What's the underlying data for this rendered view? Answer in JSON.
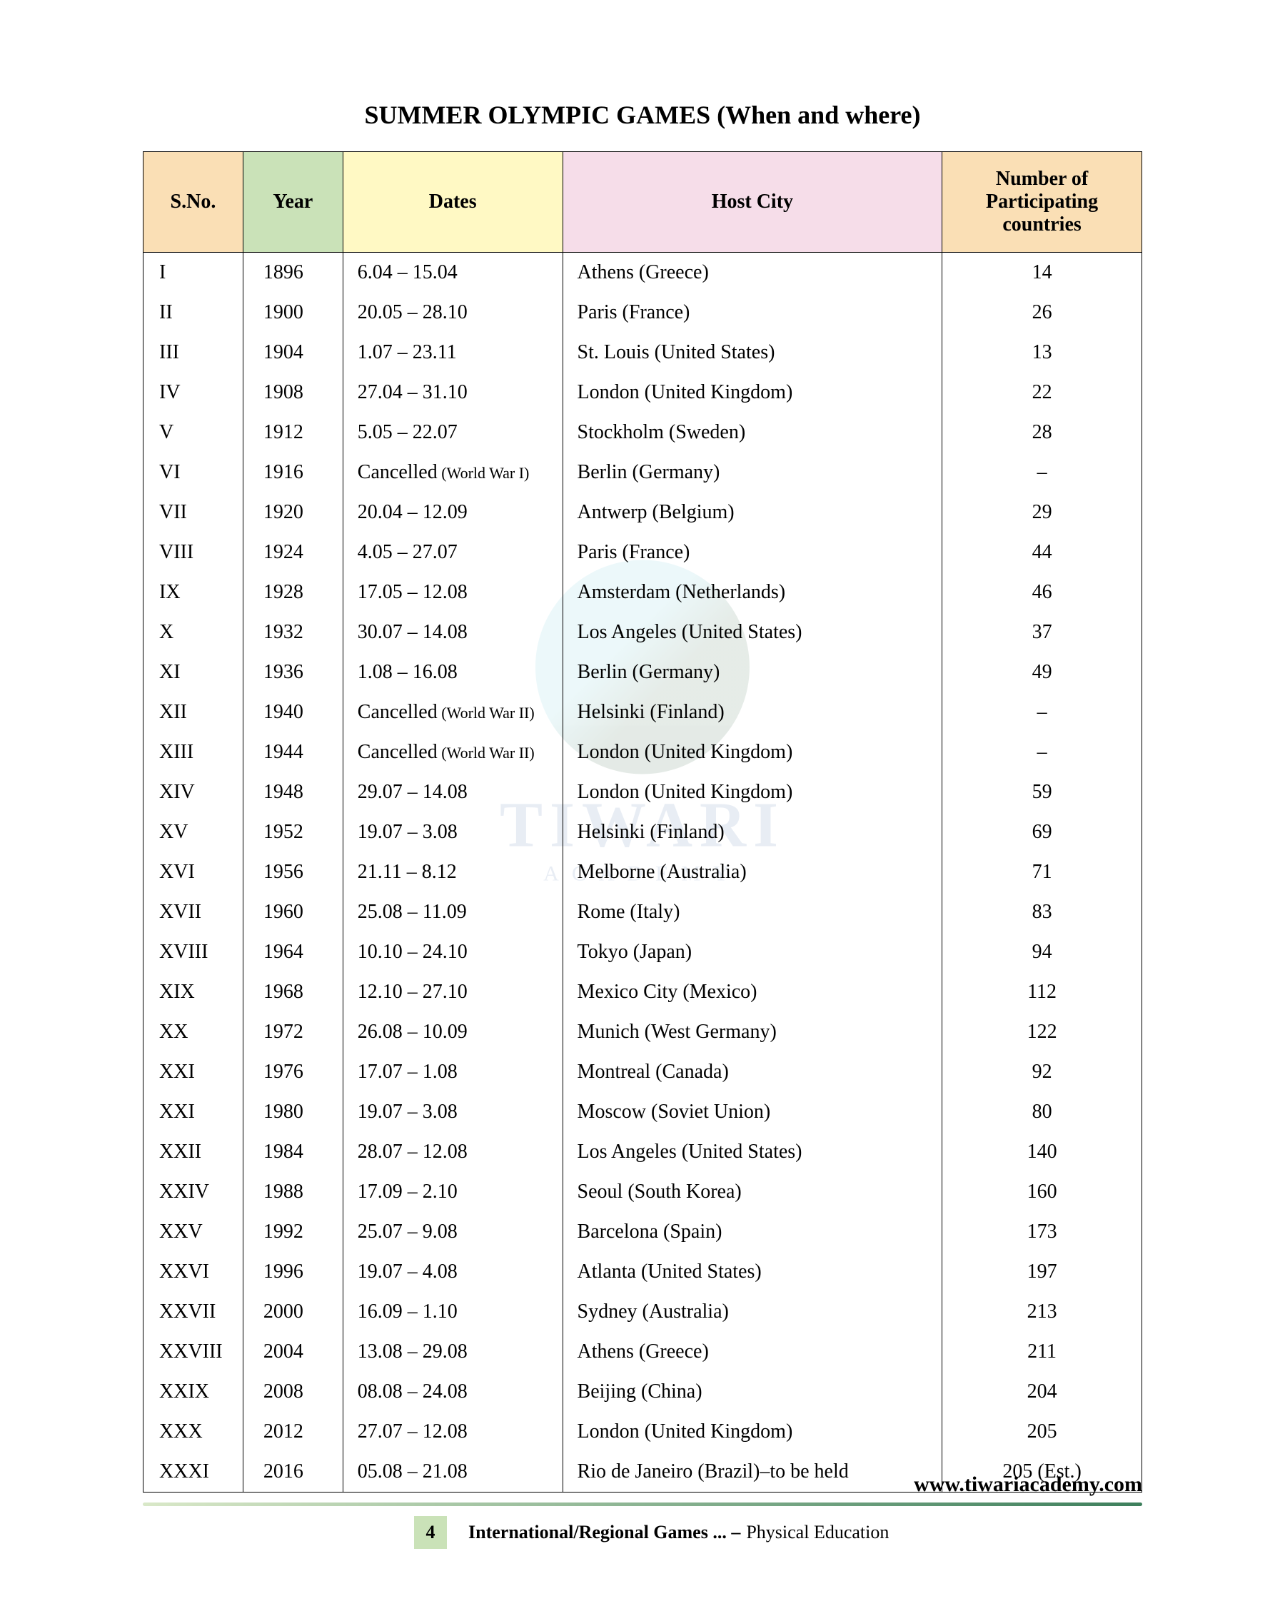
{
  "title": "SUMMER OLYMPIC GAMES (When and where)",
  "watermark": {
    "line1": "TIWARI",
    "line2": "ACADEMY"
  },
  "headers": {
    "c1": "S.No.",
    "c2": "Year",
    "c3": "Dates",
    "c4": "Host City",
    "c5": "Number of Participating countries"
  },
  "header_colors": {
    "c1": "#fadfb5",
    "c2": "#cae2b8",
    "c3": "#fff9c4",
    "c4": "#f6dde9",
    "c5": "#fadfb5"
  },
  "rows": [
    {
      "sno": "I",
      "year": "1896",
      "dates": "6.04 – 15.04",
      "host": "Athens (Greece)",
      "num": "14"
    },
    {
      "sno": "II",
      "year": "1900",
      "dates": "20.05 – 28.10",
      "host": "Paris (France)",
      "num": "26"
    },
    {
      "sno": "III",
      "year": "1904",
      "dates": "1.07 – 23.11",
      "host": "St. Louis (United States)",
      "num": "13"
    },
    {
      "sno": "IV",
      "year": "1908",
      "dates": "27.04 – 31.10",
      "host": "London (United Kingdom)",
      "num": "22"
    },
    {
      "sno": "V",
      "year": "1912",
      "dates": "5.05 – 22.07",
      "host": "Stockholm (Sweden)",
      "num": "28"
    },
    {
      "sno": "VI",
      "year": "1916",
      "dates": "Cancelled",
      "dates_note": "(World War I)",
      "host": "Berlin (Germany)",
      "num": "–"
    },
    {
      "sno": "VII",
      "year": "1920",
      "dates": "20.04 – 12.09",
      "host": "Antwerp (Belgium)",
      "num": "29"
    },
    {
      "sno": "VIII",
      "year": "1924",
      "dates": "4.05 – 27.07",
      "host": "Paris (France)",
      "num": "44"
    },
    {
      "sno": "IX",
      "year": "1928",
      "dates": "17.05 – 12.08",
      "host": "Amsterdam (Netherlands)",
      "num": "46"
    },
    {
      "sno": "X",
      "year": "1932",
      "dates": "30.07 – 14.08",
      "host": "Los Angeles (United States)",
      "num": "37"
    },
    {
      "sno": "XI",
      "year": "1936",
      "dates": "1.08 – 16.08",
      "host": "Berlin (Germany)",
      "num": "49"
    },
    {
      "sno": "XII",
      "year": "1940",
      "dates": "Cancelled",
      "dates_note": "(World War II)",
      "host": "Helsinki (Finland)",
      "num": "–"
    },
    {
      "sno": "XIII",
      "year": "1944",
      "dates": "Cancelled",
      "dates_note": "(World War II)",
      "host": "London (United Kingdom)",
      "num": "–"
    },
    {
      "sno": "XIV",
      "year": "1948",
      "dates": "29.07 – 14.08",
      "host": "London (United Kingdom)",
      "num": "59"
    },
    {
      "sno": "XV",
      "year": "1952",
      "dates": "19.07 – 3.08",
      "host": "Helsinki (Finland)",
      "num": "69"
    },
    {
      "sno": "XVI",
      "year": "1956",
      "dates": "21.11 – 8.12",
      "host": "Melborne (Australia)",
      "num": "71"
    },
    {
      "sno": "XVII",
      "year": "1960",
      "dates": "25.08 – 11.09",
      "host": "Rome (Italy)",
      "num": "83"
    },
    {
      "sno": "XVIII",
      "year": "1964",
      "dates": "10.10 – 24.10",
      "host": "Tokyo (Japan)",
      "num": "94"
    },
    {
      "sno": "XIX",
      "year": "1968",
      "dates": "12.10 – 27.10",
      "host": "Mexico City (Mexico)",
      "num": "112"
    },
    {
      "sno": "XX",
      "year": "1972",
      "dates": "26.08 – 10.09",
      "host": "Munich (West Germany)",
      "num": "122"
    },
    {
      "sno": "XXI",
      "year": "1976",
      "dates": "17.07 – 1.08",
      "host": "Montreal (Canada)",
      "num": "92"
    },
    {
      "sno": "XXI",
      "year": "1980",
      "dates": "19.07 – 3.08",
      "host": "Moscow (Soviet Union)",
      "num": "80"
    },
    {
      "sno": "XXII",
      "year": "1984",
      "dates": "28.07 – 12.08",
      "host": "Los Angeles (United States)",
      "num": "140"
    },
    {
      "sno": "XXIV",
      "year": "1988",
      "dates": "17.09 – 2.10",
      "host": "Seoul (South Korea)",
      "num": "160"
    },
    {
      "sno": "XXV",
      "year": "1992",
      "dates": "25.07 – 9.08",
      "host": "Barcelona (Spain)",
      "num": "173"
    },
    {
      "sno": "XXVI",
      "year": "1996",
      "dates": "19.07 – 4.08",
      "host": "Atlanta (United States)",
      "num": "197"
    },
    {
      "sno": "XXVII",
      "year": "2000",
      "dates": "16.09 – 1.10",
      "host": "Sydney (Australia)",
      "num": "213"
    },
    {
      "sno": "XXVIII",
      "year": "2004",
      "dates": "13.08 – 29.08",
      "host": "Athens (Greece)",
      "num": "211"
    },
    {
      "sno": "XXIX",
      "year": "2008",
      "dates": "08.08 – 24.08",
      "host": "Beijing (China)",
      "num": "204"
    },
    {
      "sno": "XXX",
      "year": "2012",
      "dates": "27.07 – 12.08",
      "host": "London (United Kingdom)",
      "num": "205"
    },
    {
      "sno": "XXXI",
      "year": "2016",
      "dates": "05.08 – 21.08",
      "host": "Rio de Janeiro (Brazil)–to be held",
      "num": "205 (Est.)"
    }
  ],
  "footer": {
    "url": "www.tiwariacademy.com",
    "page": "4",
    "chapter": "International/Regional Games ...  –",
    "subject": "Physical Education"
  }
}
